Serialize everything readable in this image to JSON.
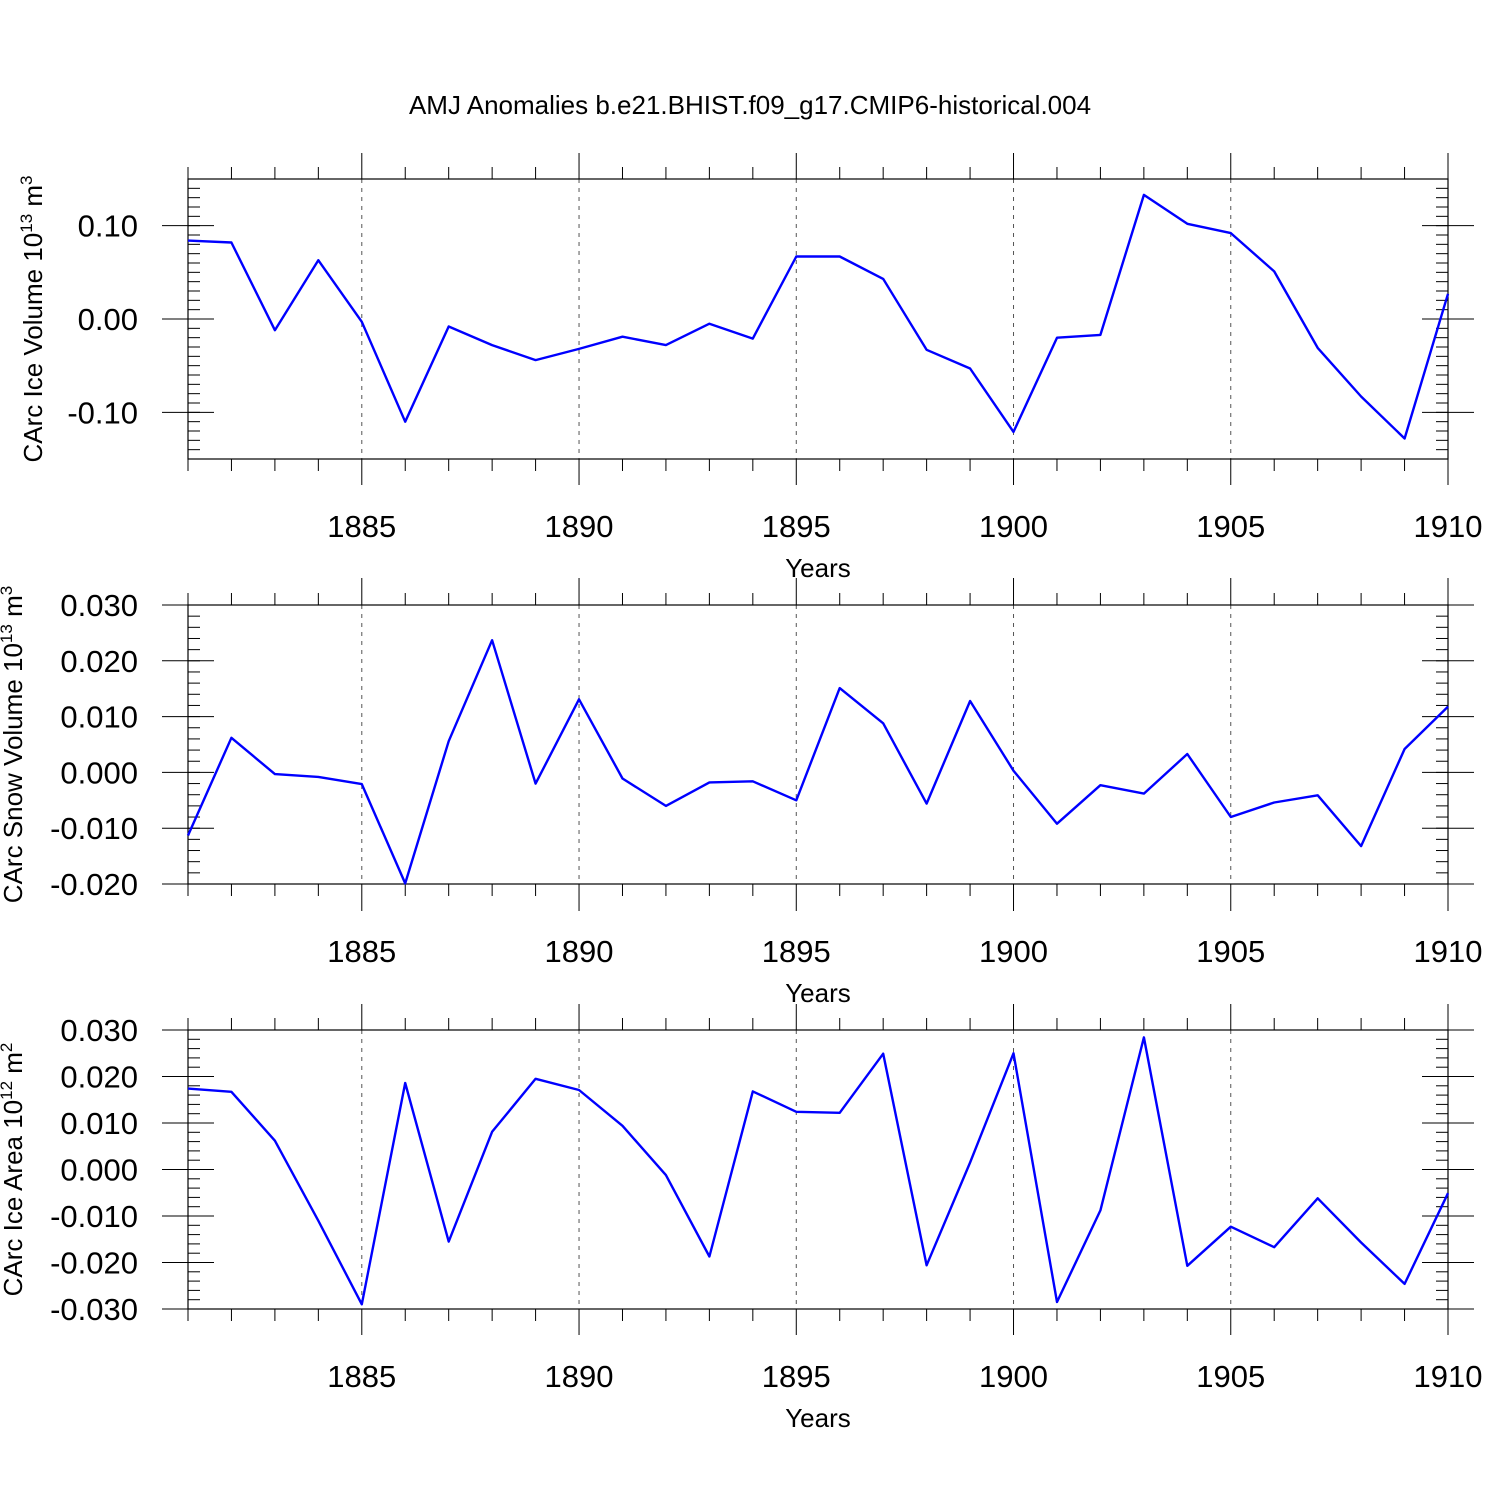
{
  "title": "AMJ Anomalies b.e21.BHIST.f09_g17.CMIP6-historical.004",
  "colors": {
    "line": "#0000ff",
    "frame": "#000000",
    "gridline": "#555555"
  },
  "chart_data": [
    {
      "type": "line",
      "xlabel": "Years",
      "ylabel": "CArc Ice Volume 10",
      "ylabel_exponent": "13",
      "ylabel_unit": " m",
      "ylabel_unit_exponent": "3",
      "xlim": [
        1881,
        1910
      ],
      "ylim": [
        -0.15,
        0.15
      ],
      "xticks": [
        1885,
        1890,
        1895,
        1900,
        1905,
        1910
      ],
      "xticklabels": [
        "1885",
        "1890",
        "1895",
        "1900",
        "1905",
        "1910"
      ],
      "yticks": [
        -0.1,
        0.0,
        0.1
      ],
      "yticklabels": [
        "-0.10",
        "0.00",
        "0.10"
      ],
      "grid": "vertical dashed at major x ticks",
      "series": [
        {
          "x": [
            1881,
            1882,
            1883,
            1884,
            1885,
            1886,
            1887,
            1888,
            1889,
            1890,
            1891,
            1892,
            1893,
            1894,
            1895,
            1896,
            1897,
            1898,
            1899,
            1900,
            1901,
            1902,
            1903,
            1904,
            1905,
            1906,
            1907,
            1908,
            1909,
            1910
          ],
          "values": [
            0.084,
            0.082,
            -0.012,
            0.063,
            -0.003,
            -0.11,
            -0.008,
            -0.028,
            -0.044,
            -0.032,
            -0.019,
            -0.028,
            -0.005,
            -0.021,
            0.067,
            0.067,
            0.043,
            -0.033,
            -0.053,
            -0.121,
            -0.02,
            -0.017,
            0.133,
            0.102,
            0.092,
            0.051,
            -0.031,
            -0.083,
            -0.128,
            0.027
          ]
        }
      ]
    },
    {
      "type": "line",
      "xlabel": "Years",
      "ylabel": "CArc Snow Volume 10",
      "ylabel_exponent": "13",
      "ylabel_unit": " m",
      "ylabel_unit_exponent": "3",
      "xlim": [
        1881,
        1910
      ],
      "ylim": [
        -0.02,
        0.03
      ],
      "xticks": [
        1885,
        1890,
        1895,
        1900,
        1905,
        1910
      ],
      "xticklabels": [
        "1885",
        "1890",
        "1895",
        "1900",
        "1905",
        "1910"
      ],
      "yticks": [
        -0.02,
        -0.01,
        0.0,
        0.01,
        0.02,
        0.03
      ],
      "yticklabels": [
        "-0.020",
        "-0.010",
        "0.000",
        "0.010",
        "0.020",
        "0.030"
      ],
      "grid": "vertical dashed at major x ticks",
      "series": [
        {
          "x": [
            1881,
            1882,
            1883,
            1884,
            1885,
            1886,
            1887,
            1888,
            1889,
            1890,
            1891,
            1892,
            1893,
            1894,
            1895,
            1896,
            1897,
            1898,
            1899,
            1900,
            1901,
            1902,
            1903,
            1904,
            1905,
            1906,
            1907,
            1908,
            1909,
            1910
          ],
          "values": [
            -0.0113,
            0.0062,
            -0.0003,
            -0.0008,
            -0.0021,
            -0.0199,
            0.0056,
            0.0237,
            -0.002,
            0.0131,
            -0.0011,
            -0.006,
            -0.0018,
            -0.0016,
            -0.005,
            0.0151,
            0.0088,
            -0.0056,
            0.0128,
            0.0003,
            -0.0092,
            -0.0023,
            -0.0038,
            0.0033,
            -0.008,
            -0.0054,
            -0.0041,
            -0.0132,
            0.0042,
            0.0118
          ]
        }
      ]
    },
    {
      "type": "line",
      "xlabel": "Years",
      "ylabel": "CArc Ice Area 10",
      "ylabel_exponent": "12",
      "ylabel_unit": " m",
      "ylabel_unit_exponent": "2",
      "xlim": [
        1881,
        1910
      ],
      "ylim": [
        -0.03,
        0.03
      ],
      "xticks": [
        1885,
        1890,
        1895,
        1900,
        1905,
        1910
      ],
      "xticklabels": [
        "1885",
        "1890",
        "1895",
        "1900",
        "1905",
        "1910"
      ],
      "yticks": [
        -0.03,
        -0.02,
        -0.01,
        0.0,
        0.01,
        0.02,
        0.03
      ],
      "yticklabels": [
        "-0.030",
        "-0.020",
        "-0.010",
        "0.000",
        "0.010",
        "0.020",
        "0.030"
      ],
      "grid": "vertical dashed at major x ticks",
      "series": [
        {
          "x": [
            1881,
            1882,
            1883,
            1884,
            1885,
            1886,
            1887,
            1888,
            1889,
            1890,
            1891,
            1892,
            1893,
            1894,
            1895,
            1896,
            1897,
            1898,
            1899,
            1900,
            1901,
            1902,
            1903,
            1904,
            1905,
            1906,
            1907,
            1908,
            1909,
            1910
          ],
          "values": [
            0.0174,
            0.0167,
            0.0062,
            -0.011,
            -0.029,
            0.0186,
            -0.0155,
            0.0081,
            0.0195,
            0.0171,
            0.0094,
            -0.0012,
            -0.0187,
            0.0168,
            0.0124,
            0.0122,
            0.0249,
            -0.0206,
            0.0015,
            0.025,
            -0.0285,
            -0.0088,
            0.0284,
            -0.0207,
            -0.0123,
            -0.0167,
            -0.0062,
            -0.0157,
            -0.0246,
            -0.0051
          ]
        }
      ]
    }
  ]
}
